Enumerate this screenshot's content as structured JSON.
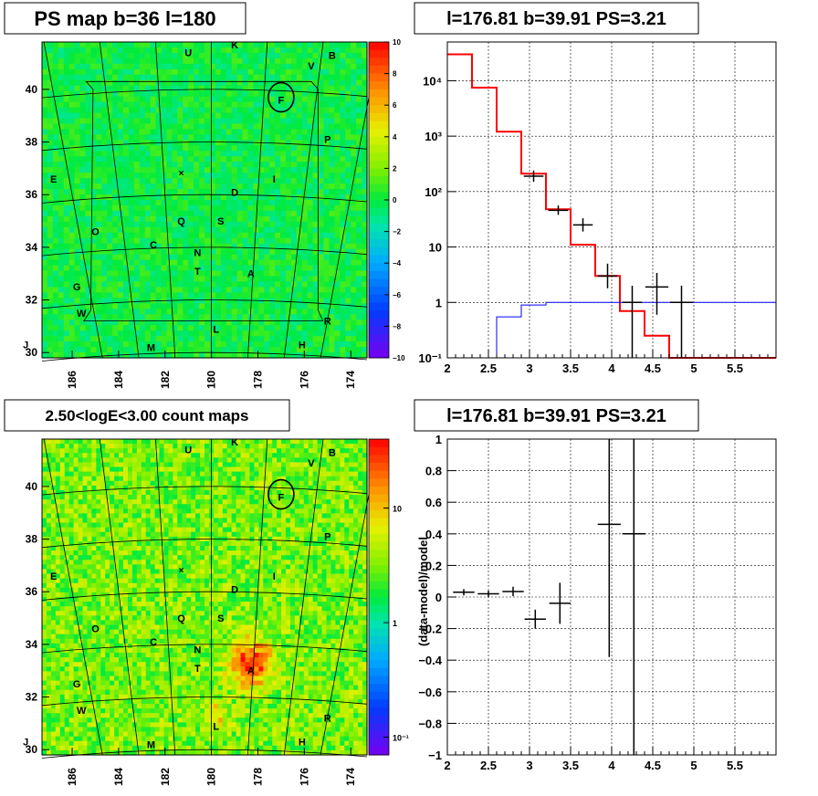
{
  "panels": {
    "tl": {
      "title": "PS map b=36 l=180",
      "xticks": [
        "186",
        "184",
        "182",
        "180",
        "178",
        "176",
        "174"
      ],
      "yticks": [
        "30",
        "32",
        "34",
        "36",
        "38",
        "40"
      ],
      "colorbar_ticks": [
        "10",
        "8",
        "6",
        "4",
        "2",
        "0",
        "−2",
        "−4",
        "−6",
        "−8",
        "−10"
      ]
    },
    "tr": {
      "title": "l=176.81 b=39.91 PS=3.21",
      "xticks": [
        "2",
        "2.5",
        "3",
        "3.5",
        "4",
        "4.5",
        "5",
        "5.5"
      ],
      "yticks": [
        "10⁻¹",
        "1",
        "10",
        "10²",
        "10³",
        "10⁴"
      ]
    },
    "bl": {
      "title": "2.50<logE<3.00 count maps",
      "xticks": [
        "186",
        "184",
        "182",
        "180",
        "178",
        "176",
        "174"
      ],
      "yticks": [
        "30",
        "32",
        "34",
        "36",
        "38",
        "40"
      ],
      "colorbar_ticks": [
        "10",
        "1",
        "10⁻¹"
      ]
    },
    "br": {
      "title": "l=176.81 b=39.91 PS=3.21",
      "ylabel": "(data-model)/model",
      "xticks": [
        "2",
        "2.5",
        "3",
        "3.5",
        "4",
        "4.5",
        "5",
        "5.5"
      ],
      "yticks": [
        "−1",
        "−0.8",
        "−0.6",
        "−0.4",
        "−0.2",
        "0",
        "0.2",
        "0.4",
        "0.6",
        "0.8",
        "1"
      ]
    }
  },
  "source_labels": [
    {
      "t": "U",
      "lon": 181.0,
      "lat": 41.4
    },
    {
      "t": "K",
      "lon": 179.0,
      "lat": 41.7
    },
    {
      "t": "B",
      "lon": 174.8,
      "lat": 41.3
    },
    {
      "t": "V",
      "lon": 175.7,
      "lat": 40.9
    },
    {
      "t": "F",
      "lon": 177.0,
      "lat": 39.6
    },
    {
      "t": "P",
      "lon": 175.0,
      "lat": 38.1
    },
    {
      "t": "E",
      "lon": 186.8,
      "lat": 36.6
    },
    {
      "t": "I",
      "lon": 177.3,
      "lat": 36.6
    },
    {
      "t": "D",
      "lon": 179.0,
      "lat": 36.1
    },
    {
      "t": "Q",
      "lon": 181.3,
      "lat": 35.0
    },
    {
      "t": "S",
      "lon": 179.6,
      "lat": 35.0
    },
    {
      "t": "O",
      "lon": 185.0,
      "lat": 34.6
    },
    {
      "t": "C",
      "lon": 182.5,
      "lat": 34.1
    },
    {
      "t": "N",
      "lon": 180.6,
      "lat": 33.8
    },
    {
      "t": "T",
      "lon": 180.6,
      "lat": 33.1
    },
    {
      "t": "A",
      "lon": 178.3,
      "lat": 33.0
    },
    {
      "t": "G",
      "lon": 185.8,
      "lat": 32.5
    },
    {
      "t": "W",
      "lon": 185.6,
      "lat": 31.5
    },
    {
      "t": "R",
      "lon": 175.0,
      "lat": 31.2
    },
    {
      "t": "L",
      "lon": 179.8,
      "lat": 30.9
    },
    {
      "t": "J",
      "lon": 188.0,
      "lat": 30.3
    },
    {
      "t": "M",
      "lon": 182.6,
      "lat": 30.2
    },
    {
      "t": "H",
      "lon": 176.1,
      "lat": 30.3
    }
  ],
  "chart_data": [
    {
      "type": "heatmap",
      "title": "PS map b=36 l=180",
      "xlim": [
        187.3,
        173.3
      ],
      "ylim": [
        29.8,
        41.8
      ],
      "zlim": [
        -10,
        10
      ],
      "description_values": {
        "typical_value": 0,
        "colormap": "rainbow"
      },
      "highlight_source": {
        "label": "F",
        "lon": 176.81,
        "lat": 39.91
      }
    },
    {
      "type": "line",
      "title": "l=176.81 b=39.91 PS=3.21",
      "yscale": "log",
      "xlim": [
        2,
        6
      ],
      "ylim": [
        0.1,
        50000
      ],
      "series": [
        {
          "color": "#ff0000",
          "style": "step",
          "edges": [
            2.0,
            2.3,
            2.6,
            2.9,
            3.2,
            3.5,
            3.8,
            4.1,
            4.4,
            4.7,
            5.0,
            6.0
          ],
          "values": [
            30000,
            7500,
            1200,
            210,
            48,
            11,
            3,
            0.7,
            0.25,
            0.1,
            0.1
          ]
        },
        {
          "color": "#0000ff",
          "style": "step",
          "edges": [
            2.3,
            2.6,
            2.9,
            3.2,
            3.5,
            3.8,
            4.1,
            4.4,
            4.7,
            5.0,
            6.0
          ],
          "values": [
            0.1,
            0.55,
            0.9,
            1.0,
            1.0,
            1.0,
            1.0,
            1.0,
            1.0,
            1.0
          ]
        },
        {
          "color": "#000000",
          "style": "errorbar",
          "points": [
            {
              "x": 3.05,
              "y": 190,
              "xerr": 0.12,
              "ylo": 150,
              "yhi": 240
            },
            {
              "x": 3.35,
              "y": 46,
              "xerr": 0.12,
              "ylo": 38,
              "yhi": 56
            },
            {
              "x": 3.65,
              "y": 25,
              "xerr": 0.12,
              "ylo": 19,
              "yhi": 33
            },
            {
              "x": 3.95,
              "y": 3,
              "xerr": 0.12,
              "ylo": 1.8,
              "yhi": 5
            },
            {
              "x": 4.25,
              "y": 1.0,
              "xerr": 0.12,
              "ylo": 0.1,
              "yhi": 2
            },
            {
              "x": 4.55,
              "y": 1.9,
              "xerr": 0.14,
              "ylo": 0.6,
              "yhi": 3.4
            },
            {
              "x": 4.85,
              "y": 1.0,
              "xerr": 0.14,
              "ylo": 0.1,
              "yhi": 2
            }
          ]
        }
      ]
    },
    {
      "type": "heatmap",
      "title": "2.50<logE<3.00 count maps",
      "xlim": [
        187.3,
        173.3
      ],
      "ylim": [
        29.8,
        41.8
      ],
      "zscale": "log",
      "zlim": [
        0.07,
        40
      ],
      "hotspot": {
        "label": "A",
        "lon": 178.3,
        "lat": 33.3
      }
    },
    {
      "type": "scatter",
      "title": "l=176.81 b=39.91 PS=3.21",
      "ylabel": "(data-model)/model",
      "xlim": [
        2,
        6
      ],
      "ylim": [
        -1,
        1
      ],
      "points": [
        {
          "x": 2.2,
          "y": 0.03,
          "xerr": 0.13,
          "yerr": 0.02
        },
        {
          "x": 2.5,
          "y": 0.02,
          "xerr": 0.13,
          "yerr": 0.02
        },
        {
          "x": 2.8,
          "y": 0.035,
          "xerr": 0.13,
          "yerr": 0.03
        },
        {
          "x": 3.07,
          "y": -0.14,
          "xerr": 0.13,
          "yerr": 0.06
        },
        {
          "x": 3.37,
          "y": -0.04,
          "xerr": 0.13,
          "yerr": 0.13
        },
        {
          "x": 3.97,
          "y": 0.46,
          "xerr": 0.14,
          "ylo": -0.38,
          "yhi": 1.0
        },
        {
          "x": 4.27,
          "y": 0.4,
          "xerr": 0.14,
          "ylo": -1.0,
          "yhi": 1.0
        }
      ]
    }
  ]
}
